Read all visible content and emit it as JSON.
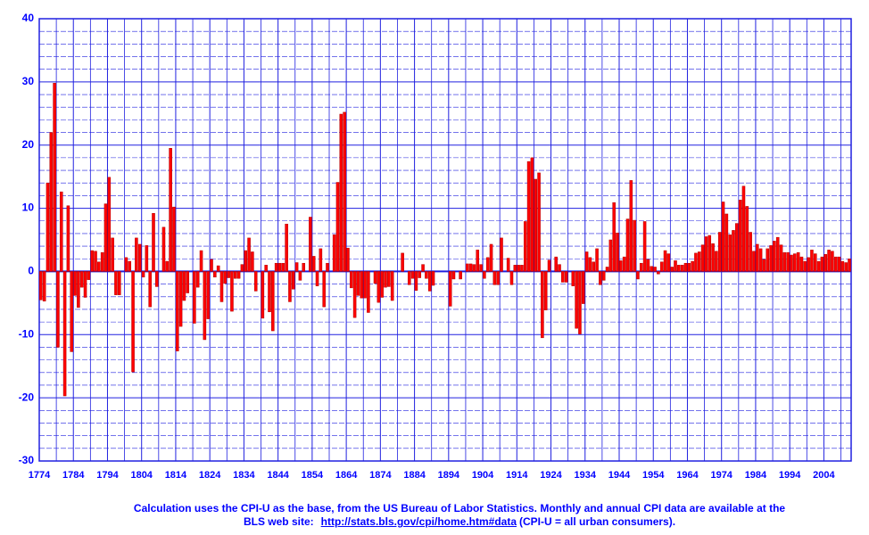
{
  "chart_data": {
    "type": "bar",
    "x": [
      1774,
      1775,
      1776,
      1777,
      1778,
      1779,
      1780,
      1781,
      1782,
      1783,
      1784,
      1785,
      1786,
      1787,
      1788,
      1789,
      1790,
      1791,
      1792,
      1793,
      1794,
      1795,
      1796,
      1797,
      1798,
      1799,
      1800,
      1801,
      1802,
      1803,
      1804,
      1805,
      1806,
      1807,
      1808,
      1809,
      1810,
      1811,
      1812,
      1813,
      1814,
      1815,
      1816,
      1817,
      1818,
      1819,
      1820,
      1821,
      1822,
      1823,
      1824,
      1825,
      1826,
      1827,
      1828,
      1829,
      1830,
      1831,
      1832,
      1833,
      1834,
      1835,
      1836,
      1837,
      1838,
      1839,
      1840,
      1841,
      1842,
      1843,
      1844,
      1845,
      1846,
      1847,
      1848,
      1849,
      1850,
      1851,
      1852,
      1853,
      1854,
      1855,
      1856,
      1857,
      1858,
      1859,
      1860,
      1861,
      1862,
      1863,
      1864,
      1865,
      1866,
      1867,
      1868,
      1869,
      1870,
      1871,
      1872,
      1873,
      1874,
      1875,
      1876,
      1877,
      1878,
      1879,
      1880,
      1881,
      1882,
      1883,
      1884,
      1885,
      1886,
      1887,
      1888,
      1889,
      1890,
      1891,
      1892,
      1893,
      1894,
      1895,
      1896,
      1897,
      1898,
      1899,
      1900,
      1901,
      1902,
      1903,
      1904,
      1905,
      1906,
      1907,
      1908,
      1909,
      1910,
      1911,
      1912,
      1913,
      1914,
      1915,
      1916,
      1917,
      1918,
      1919,
      1920,
      1921,
      1922,
      1923,
      1924,
      1925,
      1926,
      1927,
      1928,
      1929,
      1930,
      1931,
      1932,
      1933,
      1934,
      1935,
      1936,
      1937,
      1938,
      1939,
      1940,
      1941,
      1942,
      1943,
      1944,
      1945,
      1946,
      1947,
      1948,
      1949,
      1950,
      1951,
      1952,
      1953,
      1954,
      1955,
      1956,
      1957,
      1958,
      1959,
      1960,
      1961,
      1962,
      1963,
      1964,
      1965,
      1966,
      1967,
      1968,
      1969,
      1970,
      1971,
      1972,
      1973,
      1974,
      1975,
      1976,
      1977,
      1978,
      1979,
      1980,
      1981,
      1982,
      1983,
      1984,
      1985,
      1986,
      1987,
      1988,
      1989,
      1990,
      1991,
      1992,
      1993,
      1994,
      1995,
      1996,
      1997,
      1998,
      1999,
      2000,
      2001,
      2002,
      2003,
      2004,
      2005,
      2006,
      2007,
      2008,
      2009,
      2010,
      2011
    ],
    "values": [
      -4.5,
      -4.7,
      14.0,
      22.0,
      29.8,
      -12.0,
      12.6,
      -19.7,
      10.4,
      -12.7,
      -3.8,
      -5.7,
      -2.5,
      -4.1,
      -1.3,
      3.3,
      3.2,
      1.5,
      3.0,
      10.7,
      14.9,
      5.3,
      -3.7,
      -3.7,
      0,
      2.2,
      1.6,
      -15.9,
      5.3,
      4.3,
      -0.9,
      4.1,
      -5.6,
      9.2,
      -2.4,
      0,
      7.0,
      1.6,
      19.5,
      10.2,
      -12.6,
      -8.7,
      -4.6,
      -3.4,
      0,
      -8.2,
      -2.5,
      3.3,
      -10.8,
      -7.5,
      1.9,
      -0.9,
      0.9,
      -4.8,
      -1.9,
      -1.0,
      -6.3,
      -1.1,
      -1.1,
      1.1,
      3.3,
      5.3,
      3.1,
      -3.1,
      0,
      -7.4,
      1.0,
      -6.4,
      -9.4,
      1.3,
      1.3,
      1.3,
      7.5,
      -4.8,
      -2.8,
      1.4,
      -1.4,
      1.3,
      0,
      8.6,
      2.4,
      -2.3,
      3.6,
      -5.6,
      1.3,
      0,
      5.8,
      14.1,
      24.9,
      25.2,
      3.7,
      -2.6,
      -7.3,
      -3.8,
      -4.2,
      -4.2,
      -6.5,
      0,
      -1.9,
      -4.9,
      -4.1,
      -2.5,
      -2.4,
      -4.6,
      0,
      0,
      2.9,
      0,
      -2.1,
      -1.1,
      -3.0,
      -1.0,
      1.1,
      -1.1,
      -3.1,
      -2.2,
      0,
      0,
      0,
      0,
      -5.5,
      -1.2,
      0,
      -1.2,
      0,
      1.2,
      1.2,
      1.1,
      3.4,
      1.1,
      -1.1,
      2.2,
      4.3,
      -2.1,
      -2.1,
      5.3,
      0,
      2.1,
      -2.1,
      1.0,
      1.0,
      1.0,
      7.9,
      17.4,
      18.0,
      14.6,
      15.6,
      -10.5,
      -6.1,
      1.8,
      0,
      2.3,
      1.1,
      -1.7,
      -1.7,
      0,
      -2.3,
      -9.0,
      -9.9,
      -5.1,
      3.1,
      2.2,
      1.5,
      3.6,
      -2.1,
      -1.4,
      0.7,
      5.0,
      10.9,
      6.1,
      1.7,
      2.3,
      8.3,
      14.4,
      8.1,
      -1.2,
      1.3,
      7.9,
      1.9,
      0.8,
      0.7,
      -0.4,
      1.5,
      3.3,
      2.8,
      0.7,
      1.7,
      1.0,
      1.0,
      1.3,
      1.3,
      1.6,
      2.9,
      3.1,
      4.2,
      5.5,
      5.7,
      4.4,
      3.2,
      6.2,
      11.0,
      9.1,
      5.8,
      6.5,
      7.6,
      11.3,
      13.5,
      10.3,
      6.2,
      3.2,
      4.3,
      3.6,
      1.9,
      3.6,
      4.1,
      4.8,
      5.4,
      4.2,
      3.0,
      3.0,
      2.6,
      2.8,
      3.0,
      2.3,
      1.6,
      2.2,
      3.4,
      2.8,
      1.6,
      2.3,
      2.7,
      3.4,
      3.2,
      2.3,
      2.3,
      1.6,
      1.4,
      2.0
    ],
    "color": "#ff0000",
    "xlim": [
      1774,
      2012
    ],
    "ylim": [
      -30,
      40
    ],
    "xticks": [
      1774,
      1784,
      1794,
      1804,
      1814,
      1824,
      1834,
      1844,
      1854,
      1864,
      1874,
      1884,
      1894,
      1904,
      1914,
      1924,
      1934,
      1944,
      1954,
      1964,
      1974,
      1984,
      1994,
      2004
    ],
    "yticks": [
      -30,
      -20,
      -10,
      0,
      10,
      20,
      30,
      40
    ],
    "xminorticks": [
      1779,
      1789,
      1799,
      1809,
      1819,
      1829,
      1839,
      1849,
      1859,
      1869,
      1879,
      1889,
      1899,
      1909,
      1919,
      1929,
      1939,
      1949,
      1959,
      1969,
      1979,
      1989,
      1999,
      2009
    ],
    "yminorticks": [
      -28,
      -26,
      -24,
      -22,
      -18,
      -16,
      -14,
      -12,
      -8,
      -6,
      -4,
      -2,
      2,
      4,
      6,
      8,
      12,
      14,
      16,
      18,
      22,
      24,
      26,
      28,
      32,
      34,
      36,
      38
    ],
    "grid": true,
    "grid_color": "#2020e0",
    "footnote": {
      "line1": "Calculation uses the CPI-U as the base, from the US Bureau of Labor Statistics.  Monthly and annual CPI data are available at the",
      "line2_start": "BLS web site:",
      "link": "http://stats.bls.gov/cpi/home.htm#data",
      "line2_end": "(CPI-U = all urban consumers)."
    }
  }
}
